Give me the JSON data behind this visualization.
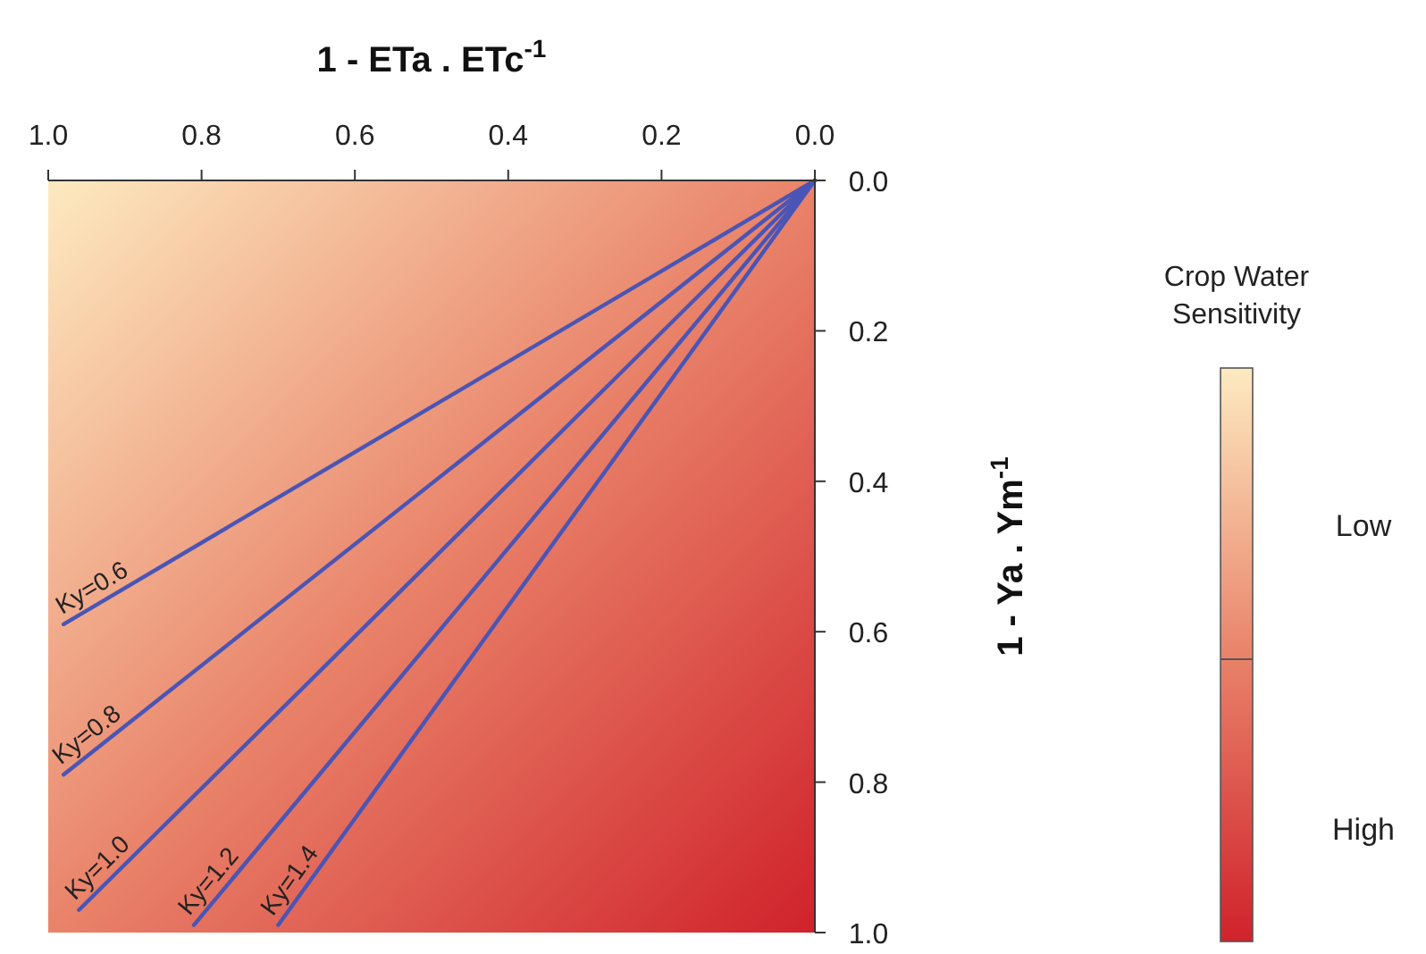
{
  "chart_data": {
    "type": "line",
    "xlabel": "1 - ETa . ETc$^{-1}$",
    "ylabel": "1 - Ya . Ym$^{-1}$",
    "legend_title": "Crop Water Sensitivity",
    "annotations": [
      "Low",
      "High"
    ],
    "xlim": [
      1.0,
      0.0
    ],
    "ylim": [
      1.0,
      0.0
    ],
    "xticks": [
      {
        "value": 1,
        "label": "1.0"
      },
      0.8,
      0.6,
      0.4,
      0.2,
      {
        "value": 0,
        "label": "0.0"
      }
    ],
    "yticks": [
      {
        "value": 0,
        "label": "0.0"
      },
      0.2,
      0.4,
      0.6,
      0.8,
      {
        "value": 1,
        "label": "1.0"
      }
    ],
    "series": [
      {
        "name": "Ky=0.6",
        "color": "#4a55b5",
        "x": [
          0,
          0.98
        ],
        "values": [
          0,
          0.59
        ]
      },
      {
        "name": "Ky=0.8",
        "color": "#4a55b5",
        "x": [
          0,
          0.98
        ],
        "values": [
          0,
          0.79
        ]
      },
      {
        "name": "Ky=1.0",
        "color": "#4a55b5",
        "x": [
          0,
          0.96
        ],
        "values": [
          0,
          0.97
        ]
      },
      {
        "name": "Ky=1.2",
        "color": "#4a55b5",
        "x": [
          0,
          0.81
        ],
        "values": [
          0,
          0.99
        ]
      },
      {
        "name": "Ky=1.4",
        "color": "#4a55b5",
        "x": [
          0,
          0.7
        ],
        "values": [
          0,
          0.99
        ]
      }
    ]
  }
}
